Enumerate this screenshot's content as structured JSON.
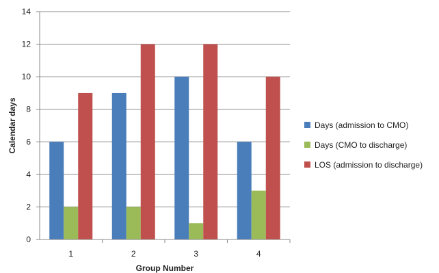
{
  "chart_data": {
    "type": "bar",
    "title": "",
    "xlabel": "Group Number",
    "ylabel": "Calendar days",
    "ylim": [
      0,
      14
    ],
    "yticks": [
      0,
      2,
      4,
      6,
      8,
      10,
      12,
      14
    ],
    "grid": true,
    "legend_position": "right",
    "categories": [
      "1",
      "2",
      "3",
      "4"
    ],
    "series": [
      {
        "name": "Days (admission to CMO)",
        "color": "#4a7ebb",
        "values": [
          6,
          9,
          10,
          6
        ]
      },
      {
        "name": "Days (CMO to discharge)",
        "color": "#9bbb59",
        "values": [
          2,
          2,
          1,
          3
        ]
      },
      {
        "name": "LOS (admission to discharge)",
        "color": "#c0504d",
        "values": [
          9,
          12,
          12,
          10
        ]
      }
    ]
  }
}
